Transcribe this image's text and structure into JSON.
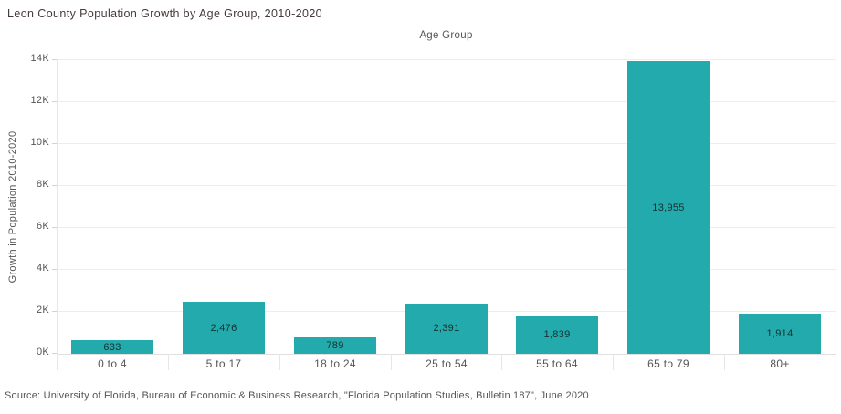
{
  "chart_data": {
    "type": "bar",
    "title": "Leon County Population Growth by Age Group, 2010-2020",
    "xlabel": "Age Group",
    "ylabel": "Growth in Population 2010-2020",
    "categories": [
      "0 to 4",
      "5 to 17",
      "18 to 24",
      "25 to 54",
      "55 to 64",
      "65 to 79",
      "80+"
    ],
    "values": [
      633,
      2476,
      789,
      2391,
      1839,
      13955,
      1914
    ],
    "value_labels": [
      "633",
      "2,476",
      "789",
      "2,391",
      "1,839",
      "13,955",
      "1,914"
    ],
    "ylim": [
      0,
      14000
    ],
    "ytick_step": 2000,
    "yticks": [
      "0K",
      "2K",
      "4K",
      "6K",
      "8K",
      "10K",
      "12K",
      "14K"
    ],
    "grid": "horizontal",
    "legend": "none",
    "bar_color": "#22aaac",
    "title_color": "#453a38",
    "axis_text_color": "#555555",
    "source": "Source: University of Florida, Bureau of Economic & Business Research, \"Florida Population Studies, Bulletin 187\", June 2020"
  }
}
